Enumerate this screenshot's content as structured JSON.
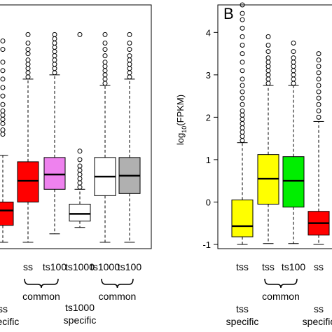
{
  "chart_data": [
    {
      "panel_id": "A (cropped)",
      "type": "box",
      "title": "",
      "ylabel": "",
      "xlabel": "",
      "ylim": [
        -1.1,
        4.65
      ],
      "categories": [
        "",
        "ss",
        "ts100",
        "ts1000",
        "ts1000",
        "ts100"
      ],
      "boxes": [
        {
          "color": "#ff0000",
          "q1": -0.55,
          "median": -0.2,
          "q3": 0.0,
          "whisker_low": -0.95,
          "whisker_high": 1.1,
          "outliers": [
            1.6,
            1.7,
            1.85,
            1.95,
            2.05,
            2.15,
            2.3,
            2.5,
            2.7,
            2.9,
            3.1,
            3.3,
            3.6,
            3.8
          ]
        },
        {
          "color": "#ff0000",
          "q1": 0.0,
          "median": 0.5,
          "q3": 0.95,
          "whisker_low": -0.95,
          "whisker_high": 2.9,
          "outliers": [
            2.95,
            3.05,
            3.15,
            3.25,
            3.35,
            3.5,
            3.6,
            3.75,
            3.95
          ]
        },
        {
          "color": "#ee82ee",
          "q1": 0.3,
          "median": 0.65,
          "q3": 1.05,
          "whisker_low": -0.75,
          "whisker_high": 3.0,
          "outliers": [
            3.05,
            3.15,
            3.25,
            3.35,
            3.45,
            3.55,
            3.65,
            3.75,
            3.85,
            3.95
          ]
        },
        {
          "color": "#ffffff",
          "q1": -0.45,
          "median": -0.28,
          "q3": -0.05,
          "whisker_low": -0.6,
          "whisker_high": 0.3,
          "outliers": [
            0.35,
            0.45,
            0.55,
            0.65,
            0.75,
            0.85,
            1.0,
            1.2,
            3.95
          ]
        },
        {
          "color": "#ffffff",
          "q1": 0.15,
          "median": 0.6,
          "q3": 1.05,
          "whisker_low": -0.95,
          "whisker_high": 2.75,
          "outliers": [
            2.8,
            2.9,
            3.0,
            3.1,
            3.2,
            3.3,
            3.45,
            3.6,
            3.75,
            3.95
          ]
        },
        {
          "color": "#b0b0b0",
          "q1": 0.2,
          "median": 0.62,
          "q3": 1.05,
          "whisker_low": -0.95,
          "whisker_high": 2.9,
          "outliers": [
            2.95,
            3.05,
            3.15,
            3.25,
            3.35,
            3.45,
            3.6,
            3.75,
            3.95
          ]
        }
      ],
      "group_labels": [
        {
          "text": "common",
          "under": [
            1,
            2
          ]
        },
        {
          "text": "common",
          "under": [
            4,
            5
          ]
        }
      ],
      "subtitles": [
        {
          "lines": [
            "ss",
            "specific"
          ],
          "under": 0
        },
        {
          "lines": [
            "ts1000",
            "specific"
          ],
          "under": 3
        }
      ]
    },
    {
      "panel_id": "B",
      "panel_letter": "B",
      "type": "box",
      "title": "",
      "ylabel": "log10(FPKM)",
      "ylabel_main": "log",
      "ylabel_sub": "10",
      "ylabel_rest": "(FPKM)",
      "xlabel": "",
      "ylim": [
        -1.1,
        4.65
      ],
      "yticks": [
        -1,
        0,
        1,
        2,
        3,
        4
      ],
      "categories": [
        "tss",
        "tss",
        "ts100",
        "ss"
      ],
      "boxes": [
        {
          "color": "#ffff00",
          "q1": -0.82,
          "median": -0.57,
          "q3": 0.05,
          "whisker_low": -1.0,
          "whisker_high": 1.4,
          "outliers": [
            1.45,
            1.55,
            1.65,
            1.75,
            1.85,
            1.95,
            2.05,
            2.15,
            2.3,
            2.45,
            2.6,
            2.75,
            2.9,
            3.1,
            3.3,
            3.5,
            3.7,
            3.9,
            4.1,
            4.3,
            4.45,
            4.65
          ]
        },
        {
          "color": "#ffff00",
          "q1": -0.05,
          "median": 0.55,
          "q3": 1.12,
          "whisker_low": -0.98,
          "whisker_high": 2.75,
          "outliers": [
            2.8,
            2.9,
            3.0,
            3.1,
            3.2,
            3.3,
            3.4,
            3.55,
            3.7,
            3.9
          ]
        },
        {
          "color": "#00ee00",
          "q1": -0.12,
          "median": 0.5,
          "q3": 1.07,
          "whisker_low": -0.98,
          "whisker_high": 2.75,
          "outliers": [
            2.8,
            2.9,
            3.0,
            3.1,
            3.2,
            3.3,
            3.4,
            3.55,
            3.75
          ]
        },
        {
          "color": "#ff0000",
          "q1": -0.78,
          "median": -0.5,
          "q3": -0.22,
          "whisker_low": -1.0,
          "whisker_high": 1.9,
          "outliers": [
            2.0,
            2.15,
            2.3,
            2.45,
            2.6,
            2.75,
            2.9,
            3.05,
            3.2,
            3.35,
            3.5
          ]
        }
      ],
      "group_labels": [
        {
          "text": "common",
          "under": [
            1,
            2
          ]
        }
      ],
      "subtitles": [
        {
          "lines": [
            "tss",
            "specific"
          ],
          "under": 0
        },
        {
          "lines": [
            "ss",
            "specific"
          ],
          "under": 3
        }
      ]
    }
  ]
}
